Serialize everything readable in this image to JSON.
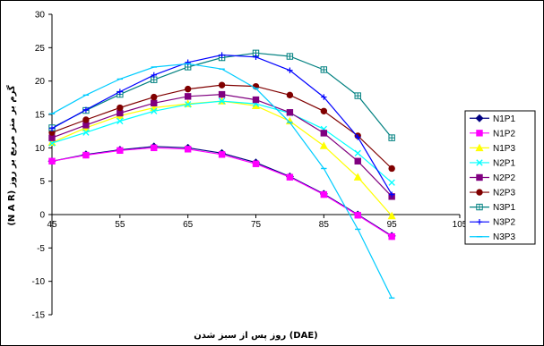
{
  "chart_data": {
    "type": "line",
    "title": "",
    "xlabel": "روز پس از سبز شدن (DAE)",
    "ylabel": "(N A R) گرم بر متر مربع بر روز",
    "xlim": [
      45,
      105
    ],
    "ylim": [
      -15,
      30
    ],
    "x_ticks": [
      45,
      55,
      65,
      75,
      85,
      95,
      105
    ],
    "y_ticks": [
      -15,
      -10,
      -5,
      0,
      5,
      10,
      15,
      20,
      25,
      30
    ],
    "grid": false,
    "legend_position": "right",
    "x": [
      45,
      50,
      55,
      60,
      65,
      70,
      75,
      80,
      85,
      90,
      95
    ],
    "series": [
      {
        "name": "N1P1",
        "color": "#000080",
        "marker": "diamond",
        "values": [
          8.0,
          9.0,
          9.7,
          10.2,
          10.0,
          9.2,
          7.8,
          5.7,
          3.1,
          0.0,
          -3.2
        ]
      },
      {
        "name": "N1P2",
        "color": "#FF00FF",
        "marker": "square",
        "values": [
          8.0,
          8.9,
          9.6,
          10.0,
          9.8,
          9.0,
          7.6,
          5.6,
          3.0,
          -0.1,
          -3.3
        ]
      },
      {
        "name": "N1P3",
        "color": "#FFFF00",
        "marker": "triangle",
        "values": [
          10.8,
          13.0,
          14.8,
          16.0,
          16.6,
          17.0,
          16.3,
          14.0,
          10.3,
          5.6,
          -0.2
        ]
      },
      {
        "name": "N2P1",
        "color": "#00FFFF",
        "marker": "x",
        "values": [
          10.7,
          12.3,
          14.0,
          15.5,
          16.5,
          17.0,
          16.6,
          15.2,
          12.8,
          9.2,
          4.8
        ]
      },
      {
        "name": "N2P2",
        "color": "#800080",
        "marker": "square",
        "values": [
          11.5,
          13.4,
          15.2,
          16.7,
          17.7,
          18.0,
          17.2,
          15.3,
          12.2,
          8.0,
          2.7
        ]
      },
      {
        "name": "N2P3",
        "color": "#800000",
        "marker": "circle",
        "values": [
          12.3,
          14.2,
          16.0,
          17.6,
          18.8,
          19.4,
          19.2,
          17.9,
          15.5,
          11.8,
          6.9
        ]
      },
      {
        "name": "N3P1",
        "color": "#008080",
        "marker": "square-cross",
        "values": [
          13.0,
          15.6,
          18.0,
          20.2,
          22.1,
          23.5,
          24.2,
          23.7,
          21.7,
          17.8,
          11.5
        ]
      },
      {
        "name": "N3P2",
        "color": "#0000FF",
        "marker": "plus",
        "values": [
          12.9,
          15.7,
          18.4,
          20.9,
          22.8,
          23.9,
          23.6,
          21.6,
          17.6,
          11.6,
          3.0
        ]
      },
      {
        "name": "N3P3",
        "color": "#00CCFF",
        "marker": "cross",
        "values": [
          15.1,
          17.9,
          20.3,
          22.1,
          22.6,
          21.8,
          18.9,
          13.8,
          6.9,
          -2.2,
          -12.5
        ]
      }
    ]
  }
}
